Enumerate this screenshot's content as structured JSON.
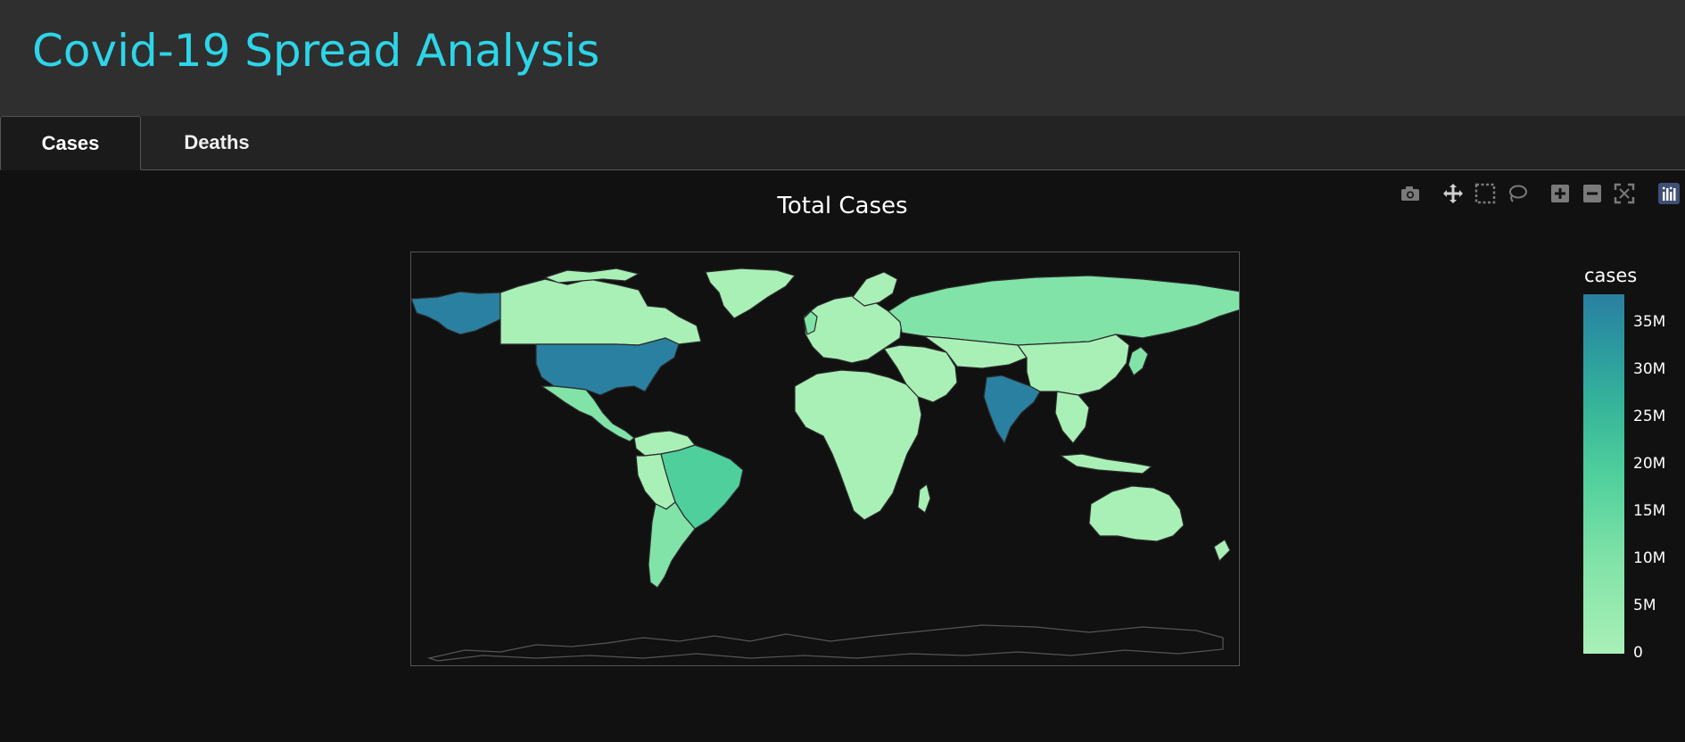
{
  "app": {
    "title": "Covid-19 Spread Analysis"
  },
  "tabs": [
    {
      "label": "Cases",
      "active": true
    },
    {
      "label": "Deaths",
      "active": false
    }
  ],
  "modebar": [
    {
      "icon": "camera-icon",
      "tooltip": ""
    },
    {
      "icon": "pan-icon",
      "tooltip": ""
    },
    {
      "icon": "box-select-icon",
      "tooltip": ""
    },
    {
      "icon": "lasso-select-icon",
      "tooltip": ""
    },
    {
      "icon": "zoom-in-icon",
      "tooltip": ""
    },
    {
      "icon": "zoom-out-icon",
      "tooltip": ""
    },
    {
      "icon": "reset-view-icon",
      "tooltip": ""
    },
    {
      "icon": "plotly-logo-icon",
      "tooltip": ""
    }
  ],
  "chart_data": {
    "type": "choropleth",
    "title": "Total Cases",
    "colorbar": {
      "title": "cases",
      "ticks": [
        "0",
        "5M",
        "10M",
        "15M",
        "20M",
        "25M",
        "30M",
        "35M"
      ],
      "min": 0,
      "max": 38000000,
      "colors": [
        "#a9f0b7",
        "#2a80a0"
      ]
    },
    "highlighted_regions": [
      {
        "name": "United States",
        "level": "high"
      },
      {
        "name": "India",
        "level": "high"
      },
      {
        "name": "Brazil",
        "level": "medium"
      }
    ]
  },
  "colors": {
    "header_bg": "#2f2f2f",
    "title_color": "#2dd5e8",
    "plot_bg": "#111111",
    "low": "#a9f0b7",
    "mid": "#4fcf9c",
    "high": "#2a80a0"
  }
}
